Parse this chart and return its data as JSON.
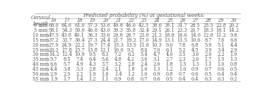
{
  "title": "Predicted probability (%) at gestational weeks:",
  "col_header": "Cervical\nlength",
  "weeks": [
    16,
    17,
    18,
    19,
    20,
    21,
    22,
    23,
    24,
    25,
    26,
    27,
    28,
    29,
    30
  ],
  "rows": [
    {
      "label": "0 mm",
      "values": [
        68.0,
        64.6,
        61.0,
        57.3,
        53.6,
        49.8,
        46.0,
        42.3,
        38.6,
        35.1,
        31.7,
        28.5,
        25.5,
        22.8,
        20.2
      ]
    },
    {
      "label": "5 mm",
      "values": [
        58.1,
        54.3,
        50.6,
        46.8,
        43.0,
        39.3,
        35.8,
        32.4,
        29.1,
        26.1,
        23.3,
        20.7,
        18.3,
        16.1,
        14.2
      ]
    },
    {
      "label": "10 mm",
      "values": [
        47.5,
        43.8,
        40.1,
        36.3,
        33.0,
        29.8,
        26.7,
        23.8,
        21.2,
        18.8,
        16.6,
        14.6,
        12.8,
        11.2,
        9.8
      ]
    },
    {
      "label": "15 mm",
      "values": [
        37.2,
        33.7,
        30.4,
        27.3,
        24.4,
        21.7,
        19.2,
        17.0,
        14.9,
        13.1,
        11.5,
        10.0,
        8.7,
        7.6,
        6.6
      ]
    },
    {
      "label": "20 mm",
      "values": [
        27.9,
        24.9,
        22.2,
        19.7,
        17.4,
        15.3,
        13.5,
        11.8,
        10.3,
        9.0,
        7.8,
        6.8,
        5.9,
        5.1,
        4.4
      ]
    },
    {
      "label": "25 mm",
      "values": [
        20.2,
        17.8,
        15.7,
        13.8,
        12.1,
        10.6,
        9.2,
        8.0,
        7.0,
        6.1,
        5.2,
        4.5,
        3.9,
        3.4,
        2.9
      ]
    },
    {
      "label": "30 mm",
      "values": [
        14.2,
        12.4,
        10.9,
        9.5,
        8.3,
        7.2,
        6.2,
        5.4,
        4.7,
        4.0,
        3.5,
        3.0,
        2.6,
        2.2,
        1.9
      ]
    },
    {
      "label": "35 mm",
      "values": [
        9.7,
        8.5,
        7.4,
        6.4,
        5.6,
        4.8,
        4.2,
        3.6,
        3.1,
        2.7,
        2.3,
        2.0,
        1.7,
        1.5,
        1.3
      ]
    },
    {
      "label": "40 mm",
      "values": [
        6.6,
        5.7,
        4.9,
        4.3,
        3.7,
        3.2,
        2.8,
        2.4,
        2.0,
        1.8,
        1.5,
        1.3,
        1.1,
        1.0,
        0.8
      ]
    },
    {
      "label": "45 mm",
      "values": [
        4.4,
        3.8,
        3.3,
        2.8,
        2.4,
        2.1,
        1.8,
        1.6,
        1.3,
        1.2,
        1.0,
        0.9,
        0.7,
        0.6,
        0.5
      ]
    },
    {
      "label": "50 mm",
      "values": [
        2.9,
        2.5,
        2.2,
        1.9,
        1.6,
        1.4,
        1.2,
        1.0,
        0.9,
        0.8,
        0.7,
        0.6,
        0.5,
        0.4,
        0.4
      ]
    },
    {
      "label": "55 mm",
      "values": [
        1.9,
        1.7,
        1.4,
        1.2,
        1.1,
        0.9,
        0.8,
        0.7,
        0.6,
        0.5,
        0.4,
        0.4,
        0.3,
        0.3,
        0.2
      ]
    }
  ],
  "bg_color": "#ffffff",
  "text_color": "#555555",
  "header_color": "#555555",
  "line_color": "#aaaaaa",
  "font_size": 4.8,
  "header_font_size": 4.9
}
